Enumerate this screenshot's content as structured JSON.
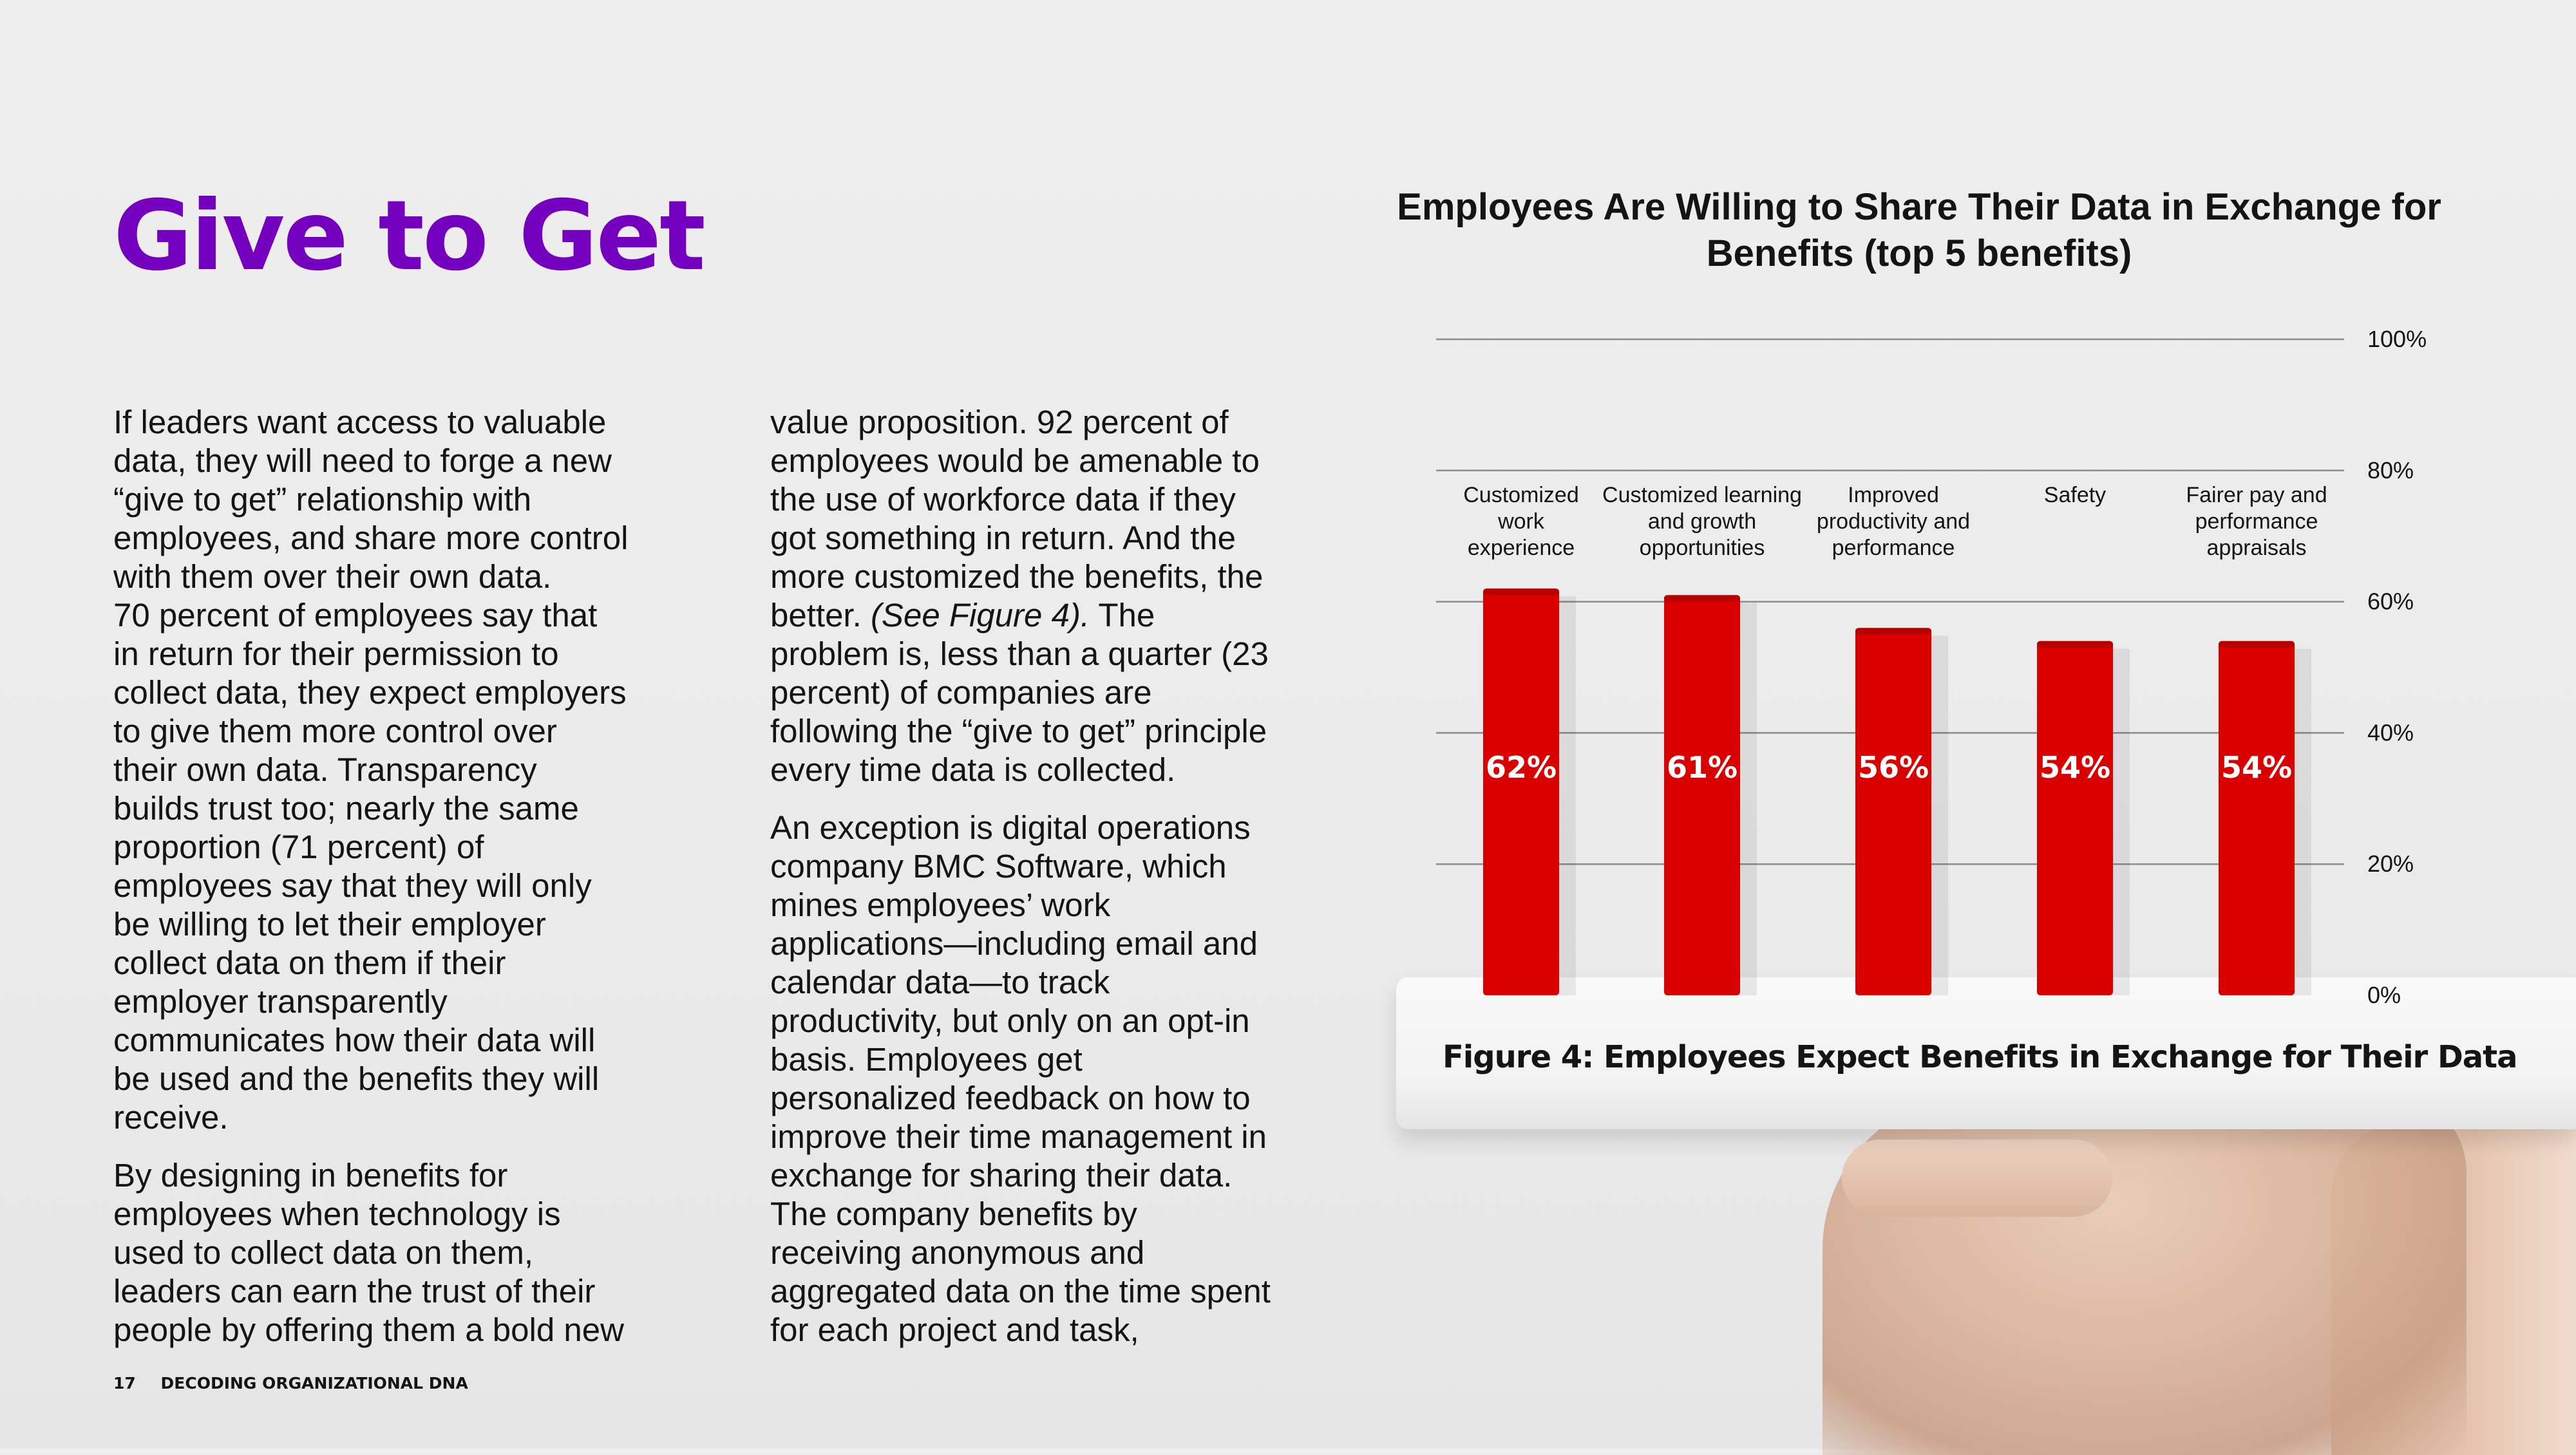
{
  "page": {
    "heading": "Give to Get",
    "column1": {
      "p1_line1": "If leaders want access to valuable data, they will need to forge a new “give to get” relationship with employees, and share more control with them over their own data.",
      "p1_line2": "70 percent of employees say that in return for their permission to collect data, they expect employers to give them more control over their own data. Transparency builds trust too; nearly the same proportion (71 percent) of employees say that they will only be willing to let their employer collect data on them if their employer transparently communicates how their data will be used and the benefits they will receive.",
      "p2": "By designing in benefits for employees when technology is used to collect data on them, leaders can earn the trust of their people by offering them a bold new"
    },
    "column2": {
      "p1_before": "value proposition. 92 percent of employees would be amenable to the use of workforce data if they got something in return. And the more customized the benefits, the better. ",
      "p1_ref": "(See Figure 4).",
      "p1_after": " The problem is, less than a quarter (23 percent) of companies are following the “give to get” principle every time data is collected.",
      "p2": "An exception is digital operations company BMC Software, which mines employees’ work applications—including email and calendar data—to track productivity, but only on an opt-in basis. Employees get personalized feedback on how to improve their time management in exchange for sharing their data. The company benefits by receiving anonymous and aggregated data on the time spent for each project and task,"
    },
    "footer": {
      "page_number": "17",
      "publication": "DECODING ORGANIZATIONAL DNA"
    },
    "figure_caption": "Figure 4: Employees Expect Benefits in Exchange for Their Data"
  },
  "colors": {
    "heading": "#7500c0",
    "bar": "#d90000"
  },
  "chart_data": {
    "type": "bar",
    "title": "Employees Are Willing to Share Their Data in Exchange for Benefits (top 5 benefits)",
    "categories": [
      [
        "Customized",
        "work",
        "experience"
      ],
      [
        "Customized learning",
        "and growth",
        "opportunities"
      ],
      [
        "Improved",
        "productivity and",
        "performance"
      ],
      [
        "Safety"
      ],
      [
        "Fairer pay and",
        "performance",
        "appraisals"
      ]
    ],
    "values": [
      62,
      61,
      56,
      54,
      54
    ],
    "value_labels": [
      "62%",
      "61%",
      "56%",
      "54%",
      "54%"
    ],
    "y_ticks": [
      "0%",
      "20%",
      "40%",
      "60%",
      "80%",
      "100%"
    ],
    "ylim": [
      0,
      100
    ],
    "grid": true,
    "xlabel": "",
    "ylabel": ""
  }
}
